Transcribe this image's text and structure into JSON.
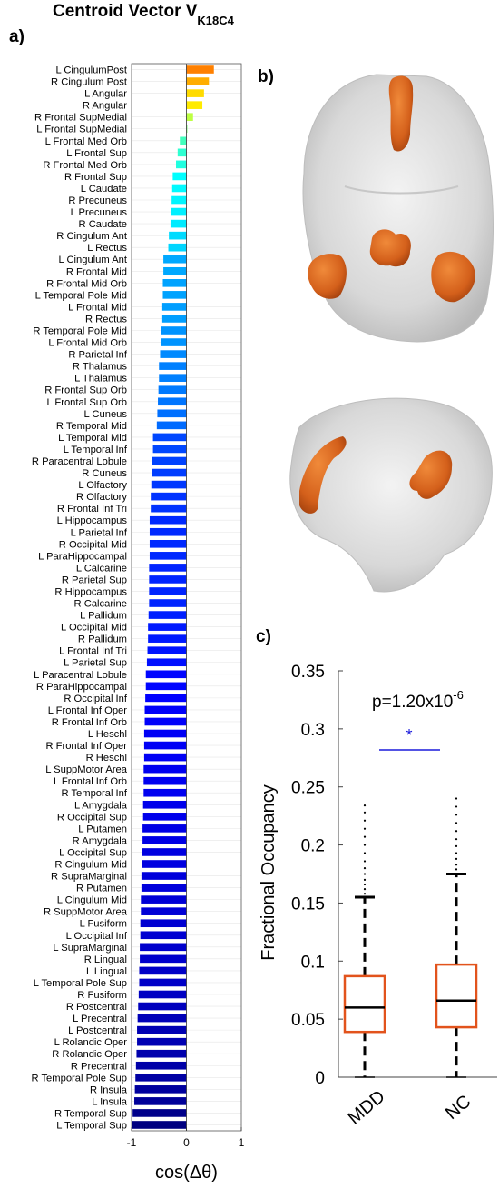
{
  "title": {
    "main": "Centroid Vector V",
    "subscript": "K18C4"
  },
  "panel_labels": {
    "a": "a)",
    "b": "b)",
    "c": "c)"
  },
  "chart_data": [
    {
      "type": "bar",
      "orientation": "horizontal",
      "xlabel": "cos(Δθ)",
      "xlim": [
        -1,
        1
      ],
      "xticks": [
        "-1",
        "0",
        "1"
      ],
      "grid": true,
      "categories": [
        "L CingulumPost",
        "R Cingulum Post",
        "L Angular",
        "R Angular",
        "R Frontal SupMedial",
        "L Frontal SupMedial",
        "L Frontal Med Orb",
        "L Frontal Sup",
        "R Frontal Med Orb",
        "R Frontal Sup",
        "L Caudate",
        "R Precuneus",
        "L Precuneus",
        "R Caudate",
        "R Cingulum Ant",
        "L Rectus",
        "L Cingulum Ant",
        "R Frontal Mid",
        "R Frontal Mid Orb",
        "L Temporal Pole Mid",
        "L Frontal Mid",
        "R Rectus",
        "R Temporal Pole Mid",
        "L Frontal Mid Orb",
        "R Parietal Inf",
        "R Thalamus",
        "L Thalamus",
        "R Frontal Sup Orb",
        "L Frontal Sup Orb",
        "L Cuneus",
        "R Temporal Mid",
        "L Temporal Mid",
        "L Temporal Inf",
        "R Paracentral Lobule",
        "R Cuneus",
        "L Olfactory",
        "R Olfactory",
        "R Frontal Inf Tri",
        "L Hippocampus",
        "L Parietal Inf",
        "R Occipital Mid",
        "L ParaHippocampal",
        "L Calcarine",
        "R Parietal Sup",
        "R Hippocampus",
        "R Calcarine",
        "L Pallidum",
        "L Occipital Mid",
        "R Pallidum",
        "L Frontal Inf Tri",
        "L Parietal Sup",
        "L Paracentral Lobule",
        "R ParaHippocampal",
        "R Occipital Inf",
        "L Frontal Inf Oper",
        "R Frontal Inf Orb",
        "L Heschl",
        "R Frontal Inf Oper",
        "R Heschl",
        "L SuppMotor Area",
        "L Frontal Inf Orb",
        "R Temporal Inf",
        "L Amygdala",
        "R Occipital Sup",
        "L Putamen",
        "R Amygdala",
        "L Occipital Sup",
        "R Cingulum Mid",
        "R SupraMarginal",
        "R Putamen",
        "L Cingulum Mid",
        "R SuppMotor Area",
        "L Fusiform",
        "L Occipital Inf",
        "L SupraMarginal",
        "R Lingual",
        "L Lingual",
        "L Temporal Pole Sup",
        "R Fusiform",
        "R Postcentral",
        "L Precentral",
        "L Postcentral",
        "L Rolandic Oper",
        "R Rolandic Oper",
        "R Precentral",
        "R Temporal Pole Sup",
        "R Insula",
        "L Insula",
        "R Temporal Sup",
        "L Temporal Sup"
      ],
      "values": [
        0.5,
        0.41,
        0.32,
        0.29,
        0.12,
        0.01,
        -0.12,
        -0.16,
        -0.19,
        -0.25,
        -0.26,
        -0.27,
        -0.28,
        -0.29,
        -0.32,
        -0.33,
        -0.42,
        -0.42,
        -0.43,
        -0.43,
        -0.44,
        -0.44,
        -0.46,
        -0.46,
        -0.48,
        -0.5,
        -0.5,
        -0.51,
        -0.52,
        -0.53,
        -0.54,
        -0.61,
        -0.61,
        -0.62,
        -0.63,
        -0.64,
        -0.65,
        -0.65,
        -0.67,
        -0.67,
        -0.67,
        -0.67,
        -0.68,
        -0.68,
        -0.68,
        -0.68,
        -0.69,
        -0.7,
        -0.7,
        -0.71,
        -0.72,
        -0.74,
        -0.74,
        -0.75,
        -0.76,
        -0.76,
        -0.77,
        -0.77,
        -0.77,
        -0.78,
        -0.78,
        -0.78,
        -0.79,
        -0.79,
        -0.8,
        -0.8,
        -0.81,
        -0.81,
        -0.82,
        -0.82,
        -0.83,
        -0.83,
        -0.84,
        -0.84,
        -0.85,
        -0.85,
        -0.86,
        -0.86,
        -0.87,
        -0.88,
        -0.89,
        -0.9,
        -0.9,
        -0.91,
        -0.92,
        -0.93,
        -0.94,
        -0.95,
        -0.98,
        -1.0
      ],
      "colormap": "jet"
    },
    {
      "type": "box",
      "ylabel": "Fractional Occupancy",
      "ylim": [
        0,
        0.35
      ],
      "yticks": [
        "0",
        "0.05",
        "0.1",
        "0.15",
        "0.2",
        "0.25",
        "0.3",
        "0.35"
      ],
      "annotation": {
        "prefix": "p=1.20x10",
        "exponent": "-6",
        "significance_marker": "*"
      },
      "groups": [
        {
          "name": "MDD",
          "whisker_low": 0,
          "q1": 0.039,
          "median": 0.06,
          "q3": 0.087,
          "whisker_high": 0.155,
          "outliers": [
            0.158,
            0.162,
            0.166,
            0.17,
            0.175,
            0.18,
            0.186,
            0.193,
            0.2,
            0.207,
            0.214,
            0.221,
            0.228,
            0.234
          ]
        },
        {
          "name": "NC",
          "whisker_low": 0,
          "q1": 0.043,
          "median": 0.066,
          "q3": 0.097,
          "whisker_high": 0.175,
          "outliers": [
            0.179,
            0.183,
            0.188,
            0.193,
            0.199,
            0.205,
            0.212,
            0.219,
            0.226,
            0.233,
            0.24
          ]
        }
      ],
      "colors": {
        "box": "#e2531c",
        "median": "#000000",
        "significance": "#1a1adb"
      }
    }
  ],
  "brain_colors": {
    "hull": "#cfcfcf",
    "cluster": "#d9661f"
  }
}
